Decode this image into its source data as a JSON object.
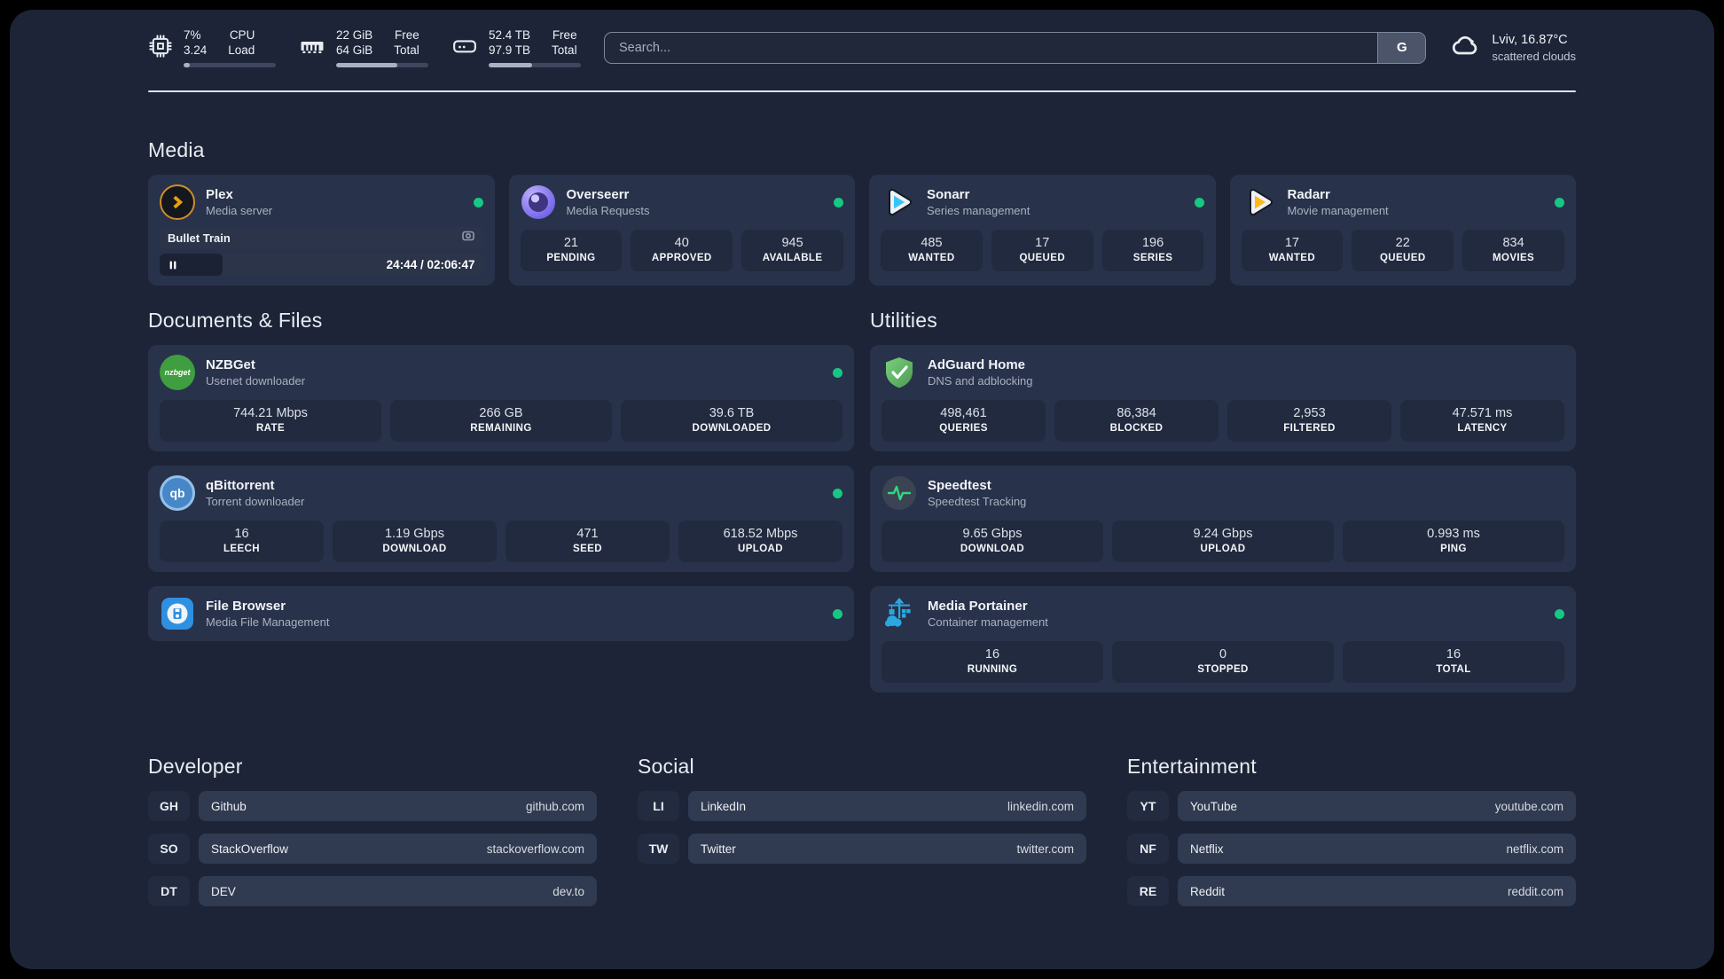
{
  "colors": {
    "background": "#1d2437",
    "card": "#28324a",
    "tile": "#212a3e",
    "pill": "#303a50",
    "badge": "#222b3f",
    "accent-green": "#17c784",
    "plex-gold": "#e5a00d",
    "sonarr-cyan": "#38c5f4",
    "radarr-yellow": "#ffb71b",
    "nzbget-green": "#3f9e3f",
    "qbittorrent-blue": "#4787c7",
    "portainer-blue": "#2ba7e0",
    "speedtest-green": "#2fd980",
    "filebrowser-blue": "#2f8fe0"
  },
  "header": {
    "metrics": [
      {
        "icon": "cpu-chip",
        "value_top": "7%",
        "value_bottom": "3.24",
        "label_top": "CPU",
        "label_bottom": "Load",
        "pct": 7
      },
      {
        "icon": "memory",
        "value_top": "22 GiB",
        "value_bottom": "64 GiB",
        "label_top": "Free",
        "label_bottom": "Total",
        "pct": 66
      },
      {
        "icon": "disk",
        "value_top": "52.4 TB",
        "value_bottom": "97.9 TB",
        "label_top": "Free",
        "label_bottom": "Total",
        "pct": 47
      }
    ],
    "search": {
      "placeholder": "Search...",
      "button_label": "G"
    },
    "weather": {
      "location": "Lviv, 16.87°C",
      "condition": "scattered clouds"
    }
  },
  "media": {
    "title": "Media",
    "plex": {
      "name": "Plex",
      "subtitle": "Media server",
      "now_playing": "Bullet Train",
      "time": "24:44 / 02:06:47",
      "progress_pct": 19.5
    },
    "overseerr": {
      "name": "Overseerr",
      "subtitle": "Media Requests",
      "stats": [
        {
          "value": "21",
          "label": "PENDING"
        },
        {
          "value": "40",
          "label": "APPROVED"
        },
        {
          "value": "945",
          "label": "AVAILABLE"
        }
      ]
    },
    "sonarr": {
      "name": "Sonarr",
      "subtitle": "Series management",
      "stats": [
        {
          "value": "485",
          "label": "WANTED"
        },
        {
          "value": "17",
          "label": "QUEUED"
        },
        {
          "value": "196",
          "label": "SERIES"
        }
      ]
    },
    "radarr": {
      "name": "Radarr",
      "subtitle": "Movie management",
      "stats": [
        {
          "value": "17",
          "label": "WANTED"
        },
        {
          "value": "22",
          "label": "QUEUED"
        },
        {
          "value": "834",
          "label": "MOVIES"
        }
      ]
    }
  },
  "documents": {
    "title": "Documents & Files",
    "nzbget": {
      "name": "NZBGet",
      "subtitle": "Usenet downloader",
      "stats": [
        {
          "value": "744.21 Mbps",
          "label": "RATE"
        },
        {
          "value": "266 GB",
          "label": "REMAINING"
        },
        {
          "value": "39.6 TB",
          "label": "DOWNLOADED"
        }
      ]
    },
    "qbittorrent": {
      "name": "qBittorrent",
      "subtitle": "Torrent downloader",
      "stats": [
        {
          "value": "16",
          "label": "LEECH"
        },
        {
          "value": "1.19 Gbps",
          "label": "DOWNLOAD"
        },
        {
          "value": "471",
          "label": "SEED"
        },
        {
          "value": "618.52 Mbps",
          "label": "UPLOAD"
        }
      ]
    },
    "filebrowser": {
      "name": "File Browser",
      "subtitle": "Media File Management"
    }
  },
  "utilities": {
    "title": "Utilities",
    "adguard": {
      "name": "AdGuard Home",
      "subtitle": "DNS and adblocking",
      "stats": [
        {
          "value": "498,461",
          "label": "QUERIES"
        },
        {
          "value": "86,384",
          "label": "BLOCKED"
        },
        {
          "value": "2,953",
          "label": "FILTERED"
        },
        {
          "value": "47.571 ms",
          "label": "LATENCY"
        }
      ]
    },
    "speedtest": {
      "name": "Speedtest",
      "subtitle": "Speedtest Tracking",
      "stats": [
        {
          "value": "9.65 Gbps",
          "label": "DOWNLOAD"
        },
        {
          "value": "9.24 Gbps",
          "label": "UPLOAD"
        },
        {
          "value": "0.993 ms",
          "label": "PING"
        }
      ]
    },
    "portainer": {
      "name": "Media Portainer",
      "subtitle": "Container management",
      "stats": [
        {
          "value": "16",
          "label": "RUNNING"
        },
        {
          "value": "0",
          "label": "STOPPED"
        },
        {
          "value": "16",
          "label": "TOTAL"
        }
      ]
    }
  },
  "links": {
    "developer": {
      "title": "Developer",
      "items": [
        {
          "abbr": "GH",
          "name": "Github",
          "url": "github.com"
        },
        {
          "abbr": "SO",
          "name": "StackOverflow",
          "url": "stackoverflow.com"
        },
        {
          "abbr": "DT",
          "name": "DEV",
          "url": "dev.to"
        }
      ]
    },
    "social": {
      "title": "Social",
      "items": [
        {
          "abbr": "LI",
          "name": "LinkedIn",
          "url": "linkedin.com"
        },
        {
          "abbr": "TW",
          "name": "Twitter",
          "url": "twitter.com"
        }
      ]
    },
    "entertainment": {
      "title": "Entertainment",
      "items": [
        {
          "abbr": "YT",
          "name": "YouTube",
          "url": "youtube.com"
        },
        {
          "abbr": "NF",
          "name": "Netflix",
          "url": "netflix.com"
        },
        {
          "abbr": "RE",
          "name": "Reddit",
          "url": "reddit.com"
        }
      ]
    }
  },
  "icons": {
    "nzbget_label": "nzbget",
    "qbittorrent_label": "qb"
  }
}
